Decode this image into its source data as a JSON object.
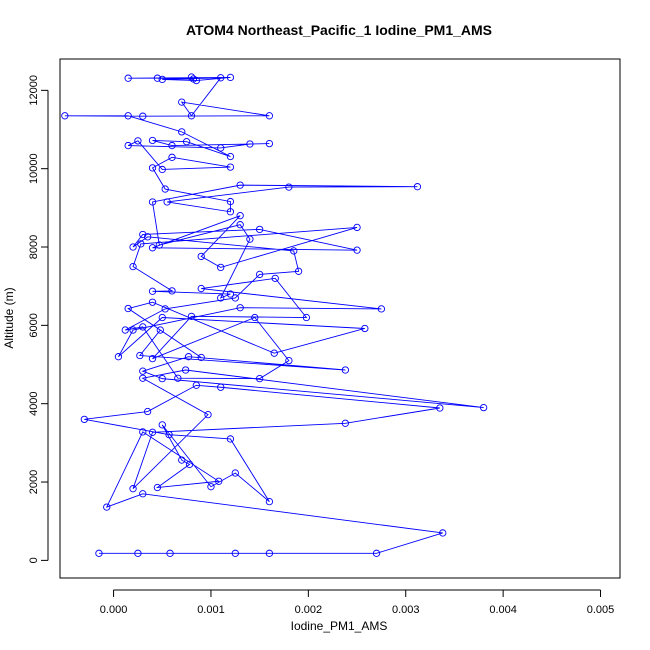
{
  "chart_data": {
    "type": "line",
    "title": "ATOM4 Northeast_Pacific_1 Iodine_PM1_AMS",
    "xlabel": "Iodine_PM1_AMS",
    "ylabel": "Altitude (m)",
    "xlim": [
      -0.00055,
      0.0052
    ],
    "ylim": [
      -450,
      12800
    ],
    "x_ticks": [
      0.0,
      0.001,
      0.002,
      0.003,
      0.004,
      0.005
    ],
    "x_tick_labels": [
      "0.000",
      "0.001",
      "0.002",
      "0.003",
      "0.004",
      "0.005"
    ],
    "y_ticks": [
      0,
      2000,
      4000,
      6000,
      8000,
      10000,
      12000
    ],
    "y_tick_labels": [
      "0",
      "2000",
      "4000",
      "6000",
      "8000",
      "10000",
      "12000"
    ],
    "grid": false,
    "legend": "none",
    "series_color": "#0000ff",
    "marker": "open-circle",
    "series": [
      {
        "x": [
          -0.00015,
          0.00025,
          0.00058,
          0.00125,
          0.0016,
          0.0027,
          0.00338,
          0.0003,
          -7e-05,
          0.0003,
          0.00108,
          0.00045,
          0.00078,
          0.0007,
          0.0005,
          0.001,
          0.00125,
          0.0016,
          0.0012,
          0.00057,
          -0.0003,
          0.00035,
          0.00085,
          0.0011,
          0.00335,
          0.00238,
          0.0004,
          0.0002,
          0.00097,
          0.0003,
          0.00074,
          0.0038,
          0.0005,
          0.0003,
          0.00077,
          0.00238,
          0.00027,
          0.00048,
          0.0009,
          0.00015,
          0.0004,
          0.00165,
          0.00258,
          0.0005,
          5e-05,
          0.0002,
          0.0013,
          0.00275,
          0.0009,
          0.00166,
          0.00198,
          0.0008,
          0.0004,
          0.00145,
          0.0018,
          0.0015,
          0.00066,
          0.0003,
          0.00012,
          0.00053,
          0.00125,
          0.0015,
          0.0019,
          0.00185,
          0.00035,
          0.0002,
          0.0003,
          0.0015,
          0.0025,
          0.0004,
          0.0013,
          0.0009,
          0.0011,
          0.0025,
          0.00028,
          0.0002,
          0.0006,
          0.0004,
          0.0012,
          0.0011,
          0.0014,
          0.0013,
          0.00047,
          0.0004,
          0.0013,
          0.00312,
          0.0018,
          0.00055,
          0.0012,
          0.0012,
          0.00053,
          0.0004,
          0.0006,
          0.0012,
          0.0005,
          0.00025,
          0.00015,
          0.0011,
          0.0014,
          0.0016,
          0.0006,
          0.0004,
          0.00075,
          0.0012,
          0.0007,
          0.00015,
          -0.0005,
          0.0003,
          0.0016,
          0.0007,
          0.0008,
          0.0011,
          0.0005,
          0.00085,
          0.0012,
          0.00015,
          0.00045,
          0.00082,
          0.0008
        ],
        "y": [
          180,
          180,
          180,
          180,
          180,
          180,
          700,
          1700,
          1360,
          3280,
          2020,
          1860,
          2450,
          2560,
          3460,
          1880,
          2230,
          1500,
          3100,
          3210,
          3600,
          3800,
          4470,
          4420,
          3890,
          3500,
          3270,
          1830,
          3720,
          4650,
          4860,
          3900,
          4640,
          4830,
          5200,
          4860,
          5230,
          5880,
          5180,
          6430,
          6590,
          5290,
          5920,
          6200,
          5200,
          5880,
          6450,
          6420,
          6940,
          7200,
          6200,
          6230,
          5150,
          6200,
          5100,
          4640,
          4650,
          5960,
          5880,
          6420,
          6700,
          7300,
          7380,
          7900,
          8260,
          8000,
          8320,
          8450,
          7920,
          7980,
          8800,
          7760,
          7480,
          8500,
          8080,
          7500,
          6880,
          6870,
          6800,
          6700,
          8200,
          8570,
          8050,
          9150,
          9580,
          9540,
          9530,
          9150,
          8900,
          9160,
          9480,
          10020,
          10290,
          10040,
          9980,
          10710,
          10590,
          10530,
          10630,
          10640,
          10590,
          10720,
          10690,
          10310,
          10940,
          11350,
          11350,
          11340,
          11350,
          11700,
          11350,
          12320,
          12280,
          12250,
          12330,
          12310,
          12310,
          12290,
          12340
        ]
      }
    ]
  }
}
